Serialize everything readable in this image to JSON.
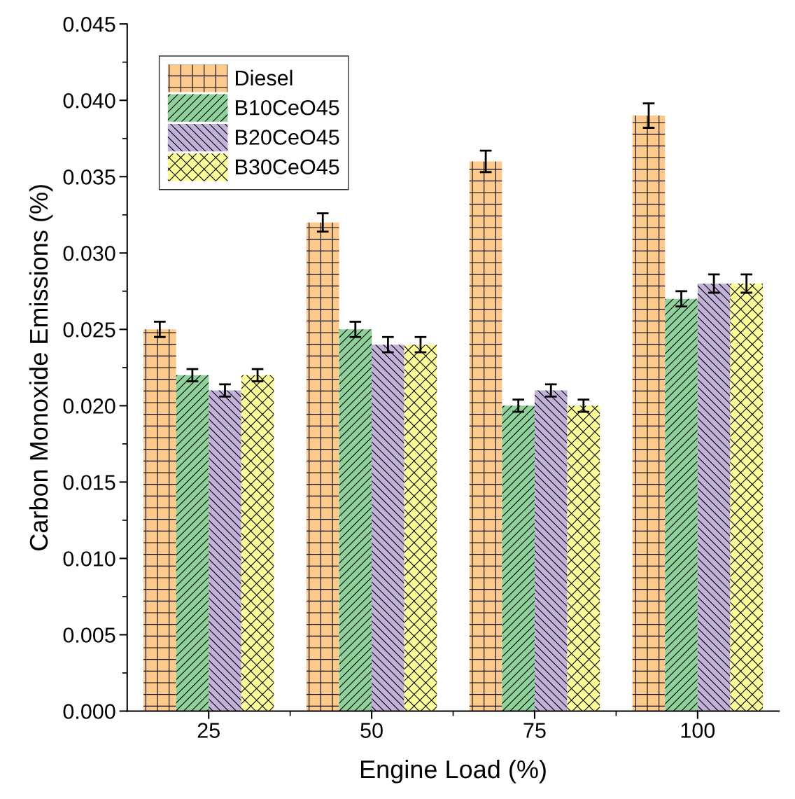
{
  "chart_data": {
    "type": "bar",
    "xlabel": "Engine Load (%)",
    "ylabel": "Carbon Monoxide Emissions (%)",
    "categories": [
      "25",
      "50",
      "75",
      "100"
    ],
    "series": [
      {
        "name": "Diesel",
        "color": "#fdca8c",
        "values": [
          0.025,
          0.032,
          0.036,
          0.039
        ],
        "errors": [
          0.0005,
          0.0006,
          0.0007,
          0.0008
        ]
      },
      {
        "name": "B10CeO45",
        "color": "#8fd19a",
        "values": [
          0.022,
          0.025,
          0.02,
          0.027
        ],
        "errors": [
          0.0004,
          0.0005,
          0.0004,
          0.0005
        ]
      },
      {
        "name": "B20CeO45",
        "color": "#c2b1d9",
        "values": [
          0.021,
          0.024,
          0.021,
          0.028
        ],
        "errors": [
          0.0004,
          0.0005,
          0.0004,
          0.0006
        ]
      },
      {
        "name": "B30CeO45",
        "color": "#fdfd99",
        "values": [
          0.022,
          0.024,
          0.02,
          0.028
        ],
        "errors": [
          0.0004,
          0.0005,
          0.0004,
          0.0006
        ]
      }
    ],
    "ylim": [
      0,
      0.045
    ],
    "yticks": [
      {
        "value": 0,
        "label": "0.000"
      },
      {
        "value": 0.005,
        "label": "0.005"
      },
      {
        "value": 0.01,
        "label": "0.010"
      },
      {
        "value": 0.015,
        "label": "0.015"
      },
      {
        "value": 0.02,
        "label": "0.020"
      },
      {
        "value": 0.025,
        "label": "0.025"
      },
      {
        "value": 0.03,
        "label": "0.030"
      },
      {
        "value": 0.035,
        "label": "0.035"
      },
      {
        "value": 0.04,
        "label": "0.040"
      },
      {
        "value": 0.045,
        "label": "0.045"
      }
    ],
    "grid": false,
    "legend": "top left"
  }
}
